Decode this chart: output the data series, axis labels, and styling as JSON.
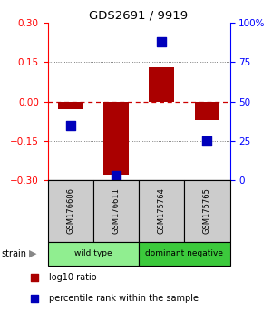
{
  "title": "GDS2691 / 9919",
  "samples": [
    "GSM176606",
    "GSM176611",
    "GSM175764",
    "GSM175765"
  ],
  "log10_ratio": [
    -0.03,
    -0.28,
    0.13,
    -0.07
  ],
  "percentile_rank": [
    35,
    3,
    88,
    25
  ],
  "ylim_left": [
    -0.3,
    0.3
  ],
  "ylim_right": [
    0,
    100
  ],
  "yticks_left": [
    -0.3,
    -0.15,
    0.0,
    0.15,
    0.3
  ],
  "yticks_right": [
    0,
    25,
    50,
    75,
    100
  ],
  "ytick_labels_right": [
    "0",
    "25",
    "50",
    "75",
    "100%"
  ],
  "groups": [
    {
      "label": "wild type",
      "samples": [
        0,
        1
      ],
      "color": "#90EE90"
    },
    {
      "label": "dominant negative",
      "samples": [
        2,
        3
      ],
      "color": "#3CC93C"
    }
  ],
  "bar_color": "#AA0000",
  "point_color": "#0000BB",
  "zero_line_color": "#CC0000",
  "grid_color": "#555555",
  "sample_box_color": "#CCCCCC",
  "bar_width": 0.55,
  "point_size": 45,
  "legend_label_bar": "log10 ratio",
  "legend_label_point": "percentile rank within the sample",
  "strain_label": "strain"
}
